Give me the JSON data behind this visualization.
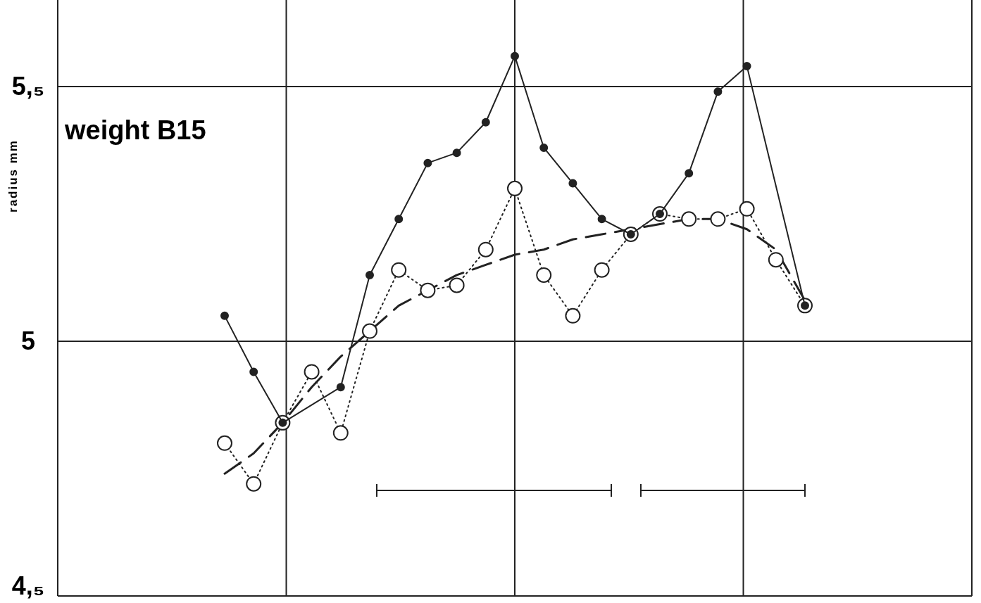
{
  "chart_data": {
    "type": "line",
    "ylabel": "radius mm",
    "annotations": [
      "weight B15"
    ],
    "categories": [
      null,
      null,
      null,
      null,
      null,
      null,
      null,
      null,
      null,
      null,
      null,
      null,
      null,
      null,
      null,
      null,
      null,
      null,
      null,
      null,
      null
    ],
    "ylim": [
      4.5,
      5.67
    ],
    "yticks": [
      {
        "value": 4.5,
        "label": "4,₅"
      },
      {
        "value": 5,
        "label": "5"
      },
      {
        "value": 5.5,
        "label": "5,₅"
      }
    ],
    "grid": true,
    "series": [
      {
        "color": "#222222",
        "marker": "circle",
        "line_style": "solid",
        "values": [
          5.05,
          4.94,
          4.84,
          null,
          4.91,
          5.13,
          5.24,
          5.35,
          5.37,
          5.43,
          5.56,
          5.38,
          5.31,
          5.24,
          5.21,
          5.25,
          5.33,
          5.49,
          5.54,
          null,
          5.07
        ]
      },
      {
        "color": "#222222",
        "marker": "circle",
        "line_style": "dotted",
        "values": [
          4.8,
          4.72,
          4.84,
          4.94,
          4.82,
          5.02,
          5.14,
          5.1,
          5.11,
          5.18,
          5.3,
          5.13,
          5.05,
          5.14,
          5.21,
          5.25,
          5.24,
          5.24,
          5.26,
          5.16,
          5.07
        ]
      },
      {
        "color": "#222222",
        "marker": "none",
        "line_style": "dashed",
        "values": [
          4.74,
          4.78,
          4.84,
          4.91,
          4.97,
          5.02,
          5.07,
          5.1,
          5.13,
          5.15,
          5.17,
          5.18,
          5.2,
          5.21,
          5.22,
          5.23,
          5.24,
          5.24,
          5.22,
          5.18,
          5.08
        ]
      }
    ]
  }
}
